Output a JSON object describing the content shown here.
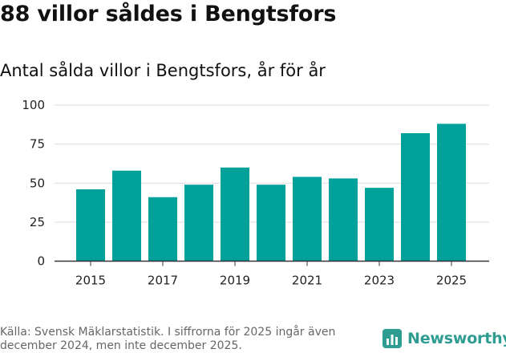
{
  "header": {
    "title": "88 villor såldes i Bengtsfors",
    "subtitle": "Antal sålda villor i Bengtsfors, år för år"
  },
  "chart_data": {
    "type": "bar",
    "title": "88 villor såldes i Bengtsfors",
    "subtitle": "Antal sålda villor i Bengtsfors, år för år",
    "categories": [
      2015,
      2016,
      2017,
      2018,
      2019,
      2020,
      2021,
      2022,
      2023,
      2024,
      2025
    ],
    "values": [
      46,
      58,
      41,
      49,
      60,
      49,
      54,
      53,
      47,
      82,
      88
    ],
    "x_tick_labels": [
      "2015",
      "2017",
      "2019",
      "2021",
      "2023",
      "2025"
    ],
    "y_ticks": [
      0,
      25,
      50,
      75,
      100
    ],
    "ylim": [
      0,
      100
    ],
    "xlabel": "",
    "ylabel": "",
    "grid": true,
    "bar_color": "#00a19a"
  },
  "footer": {
    "source": "Källa: Svensk Mäklarstatistik. I siffrorna för 2025 ingår även december 2024, men inte december 2025.",
    "brand": "Newsworthy",
    "brand_icon": "newsworthy-bar-icon",
    "brand_color": "#2f9c92"
  }
}
